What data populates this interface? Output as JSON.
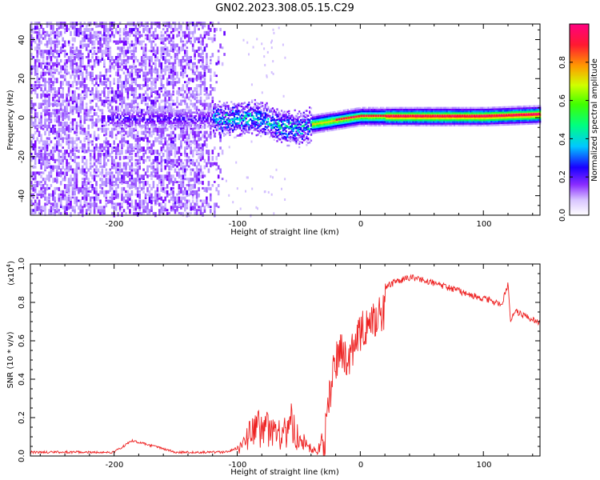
{
  "title": "GN02.2023.308.05.15.C29",
  "chart_data": [
    {
      "type": "heatmap",
      "title": "GN02.2023.308.05.15.C29",
      "xlabel": "Height of straight line (km)",
      "ylabel": "Frequency (Hz)",
      "xlim": [
        -268,
        146
      ],
      "ylim": [
        -50,
        48
      ],
      "xticks": [
        -200,
        -100,
        0,
        100
      ],
      "yticks": [
        -40,
        -20,
        0,
        20,
        40
      ],
      "colorbar": {
        "label": "Normalized spectral amplitude",
        "range": [
          0,
          1
        ],
        "ticks": [
          0.0,
          0.2,
          0.4,
          0.6,
          0.8
        ],
        "colormap": [
          "#ffffff",
          "#b08cff",
          "#7a00ff",
          "#0000ff",
          "#00e5ff",
          "#00ff40",
          "#c8ff00",
          "#ffa000",
          "#ff0040",
          "#ff00a0"
        ]
      },
      "ridge": {
        "x": [
          -200,
          -150,
          -110,
          -100,
          -90,
          -80,
          -70,
          -60,
          -50,
          -40,
          -30,
          -20,
          -10,
          0,
          20,
          50,
          80,
          100,
          146
        ],
        "frequency": [
          0,
          0,
          0,
          0,
          1,
          0,
          -3,
          -4,
          -5,
          -3,
          -2,
          -1,
          0,
          1,
          1,
          1,
          1,
          1,
          2
        ]
      },
      "noise_extent_km": -110
    },
    {
      "type": "line",
      "xlabel": "Height of straight line (km)",
      "ylabel": "SNR (10 * v/v)",
      "y_multiplier": "(x10^4)",
      "xlim": [
        -268,
        146
      ],
      "ylim": [
        0,
        1.0
      ],
      "xticks": [
        -200,
        -100,
        0,
        100
      ],
      "yticks": [
        0.0,
        0.2,
        0.4,
        0.6,
        0.8,
        1.0
      ],
      "series": [
        {
          "color": "#ee2222",
          "x": [
            -268,
            -200,
            -185,
            -150,
            -110,
            -100,
            -90,
            -80,
            -70,
            -60,
            -55,
            -50,
            -40,
            -35,
            -30,
            -25,
            -20,
            -15,
            -10,
            -5,
            0,
            10,
            20,
            30,
            40,
            50,
            60,
            70,
            80,
            90,
            100,
            110,
            115,
            120,
            122,
            125,
            130,
            146
          ],
          "values": [
            0.02,
            0.02,
            0.08,
            0.02,
            0.02,
            0.04,
            0.15,
            0.2,
            0.15,
            0.18,
            0.22,
            0.12,
            0.05,
            0.04,
            0.12,
            0.4,
            0.6,
            0.65,
            0.6,
            0.7,
            0.76,
            0.82,
            0.88,
            0.91,
            0.93,
            0.92,
            0.9,
            0.88,
            0.86,
            0.84,
            0.82,
            0.8,
            0.79,
            0.9,
            0.7,
            0.76,
            0.74,
            0.69
          ]
        }
      ]
    }
  ],
  "top": {
    "xlabel": "Height of straight line (km)",
    "ylabel": "Frequency (Hz)",
    "xticklabels": [
      "-200",
      "-100",
      "0",
      "100"
    ],
    "yticklabels": [
      "-40",
      "-20",
      "0",
      "20",
      "40"
    ]
  },
  "colorbar": {
    "label": "Normalized spectral amplitude",
    "ticklabels": [
      "0.0",
      "0.2",
      "0.4",
      "0.6",
      "0.8"
    ]
  },
  "bottom": {
    "xlabel": "Height of straight line (km)",
    "ylabel": "SNR (10 * v/v)",
    "multiplier": "(x10",
    "multiplier_exp": "4",
    "multiplier_close": ")",
    "xticklabels": [
      "-200",
      "-100",
      "0",
      "100"
    ],
    "yticklabels": [
      "0.0",
      "0.2",
      "0.4",
      "0.6",
      "0.8",
      "1.0"
    ]
  }
}
